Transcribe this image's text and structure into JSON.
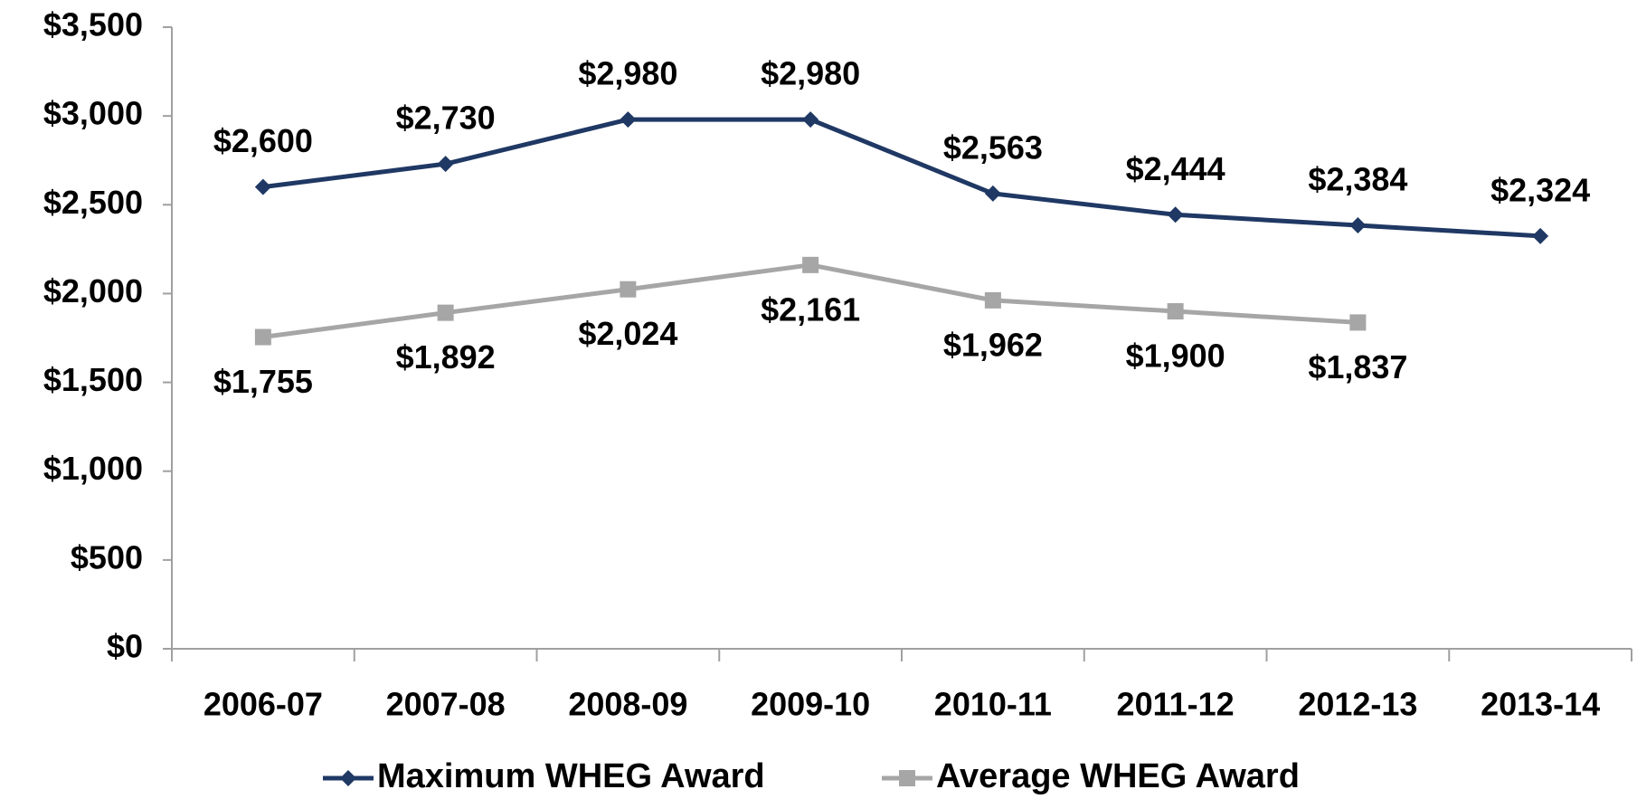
{
  "chart_data": {
    "type": "line",
    "categories": [
      "2006-07",
      "2007-08",
      "2008-09",
      "2009-10",
      "2010-11",
      "2011-12",
      "2012-13",
      "2013-14"
    ],
    "series": [
      {
        "name": "Maximum WHEG Award",
        "color": "#1f3864",
        "marker": "diamond",
        "values": [
          2600,
          2730,
          2980,
          2980,
          2563,
          2444,
          2384,
          2324
        ],
        "value_labels": [
          "$2,600",
          "$2,730",
          "$2,980",
          "$2,980",
          "$2,563",
          "$2,444",
          "$2,384",
          "$2,324"
        ]
      },
      {
        "name": "Average WHEG Award",
        "color": "#a6a6a6",
        "marker": "square",
        "values": [
          1755,
          1892,
          2024,
          2161,
          1962,
          1900,
          1837,
          null
        ],
        "value_labels": [
          "$1,755",
          "$1,892",
          "$2,024",
          "$2,161",
          "$1,962",
          "$1,900",
          "$1,837",
          null
        ]
      }
    ],
    "ylim": [
      0,
      3500
    ],
    "yticks": [
      {
        "value": 0,
        "label": "$0"
      },
      {
        "value": 500,
        "label": "$500"
      },
      {
        "value": 1000,
        "label": "$1,000"
      },
      {
        "value": 1500,
        "label": "$1,500"
      },
      {
        "value": 2000,
        "label": "$2,000"
      },
      {
        "value": 2500,
        "label": "$2,500"
      },
      {
        "value": 3000,
        "label": "$3,000"
      },
      {
        "value": 3500,
        "label": "$3,500"
      }
    ],
    "grid": false,
    "legend": "bottom"
  }
}
